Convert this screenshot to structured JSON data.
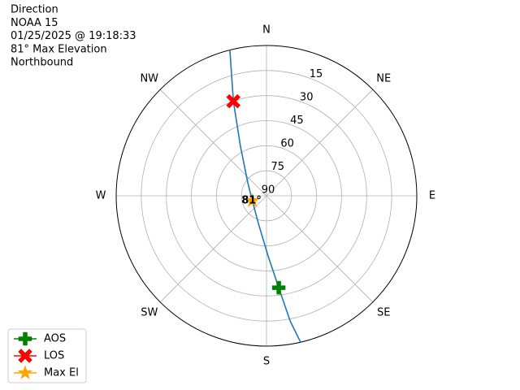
{
  "chart_data": {
    "type": "polar",
    "title_lines": [
      "Direction",
      "NOAA 15",
      "01/25/2025 @ 19:18:33",
      "81° Max Elevation",
      "Northbound"
    ],
    "theta_zero": "N",
    "theta_direction": "clockwise",
    "xticks": [
      {
        "value": 0,
        "label": "N"
      },
      {
        "value": 45,
        "label": "NE"
      },
      {
        "value": 90,
        "label": "E"
      },
      {
        "value": 135,
        "label": "SE"
      },
      {
        "value": 180,
        "label": "S"
      },
      {
        "value": 225,
        "label": "SW"
      },
      {
        "value": 270,
        "label": "W"
      },
      {
        "value": 315,
        "label": "NW"
      }
    ],
    "ylim": [
      90,
      0
    ],
    "yticks": [
      15,
      30,
      45,
      60,
      75,
      90
    ],
    "grid": true,
    "track": {
      "color": "#1f77b4",
      "az": [
        345.9,
        340.7,
        332.3,
        304.8,
        250.6,
        196.4,
        178.5,
        172.4,
        169.3,
        166.9
      ],
      "el": [
        0,
        30,
        56.4,
        76.4,
        81,
        72.8,
        54,
        34.5,
        13.8,
        0
      ]
    },
    "markers": [
      {
        "name": "AOS",
        "color": "green",
        "shape": "plus",
        "az": 172.4,
        "el": 34.5
      },
      {
        "name": "LOS",
        "color": "red",
        "shape": "x",
        "az": 340.7,
        "el": 30
      },
      {
        "name": "Max El",
        "color": "orange",
        "shape": "star",
        "az": 250.6,
        "el": 81
      }
    ],
    "annotation": "81°",
    "legend": "lower left"
  }
}
